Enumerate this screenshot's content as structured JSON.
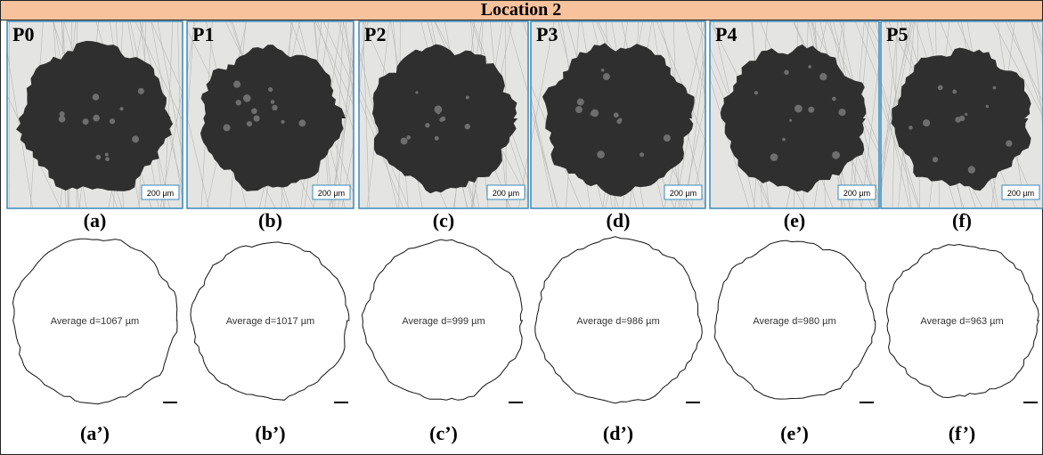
{
  "header": {
    "title": "Location 2"
  },
  "panels": [
    {
      "label": "P0",
      "scale": "200 µm",
      "caption": "(a)",
      "outline_text": "Average d=1067 µm",
      "outline_caption": "(a’)"
    },
    {
      "label": "P1",
      "scale": "200 µm",
      "caption": "(b)",
      "outline_text": "Average d=1017 µm",
      "outline_caption": "(b’)"
    },
    {
      "label": "P2",
      "scale": "200 µm",
      "caption": "(c)",
      "outline_text": "Average d=999 µm",
      "outline_caption": "(c’)"
    },
    {
      "label": "P3",
      "scale": "200 µm",
      "caption": "(d)",
      "outline_text": "Average d=986 µm",
      "outline_caption": "(d’)"
    },
    {
      "label": "P4",
      "scale": "200 µm",
      "caption": "(e)",
      "outline_text": "Average d=980 µm",
      "outline_caption": "(e’)"
    },
    {
      "label": "P5",
      "scale": "200 µm",
      "caption": "(f)",
      "outline_text": "Average d=963 µm",
      "outline_caption": "(f’)"
    }
  ]
}
